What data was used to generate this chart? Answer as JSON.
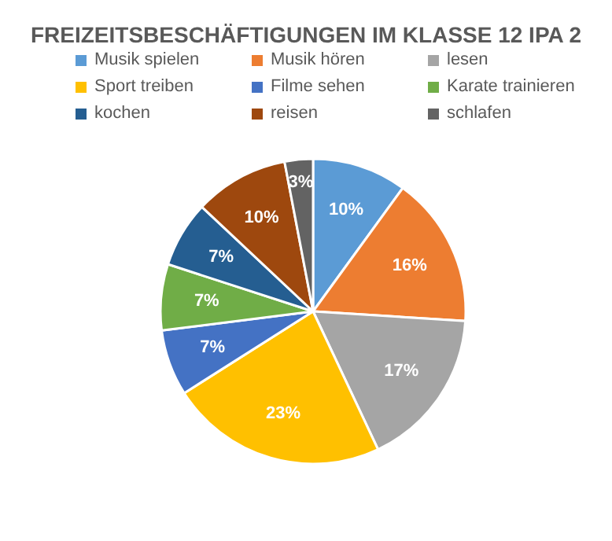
{
  "chart_data": {
    "type": "pie",
    "title": "FREIZEITSBESCHÄFTIGUNGEN IM KLASSE 12 IPA 2",
    "categories": [
      "Musik spielen",
      "Musik hören",
      "lesen",
      "Sport treiben",
      "Filme sehen",
      "Karate trainieren",
      "kochen",
      "reisen",
      "schlafen"
    ],
    "values": [
      10,
      16,
      17,
      23,
      7,
      7,
      7,
      10,
      3
    ],
    "colors": [
      "#5b9bd5",
      "#ed7d31",
      "#a5a5a5",
      "#ffc000",
      "#4472c4",
      "#70ad47",
      "#255e91",
      "#9e480e",
      "#636363"
    ],
    "value_labels": [
      "10%",
      "16%",
      "17%",
      "23%",
      "7%",
      "7%",
      "7%",
      "10%",
      "3%"
    ],
    "legend": "top"
  }
}
